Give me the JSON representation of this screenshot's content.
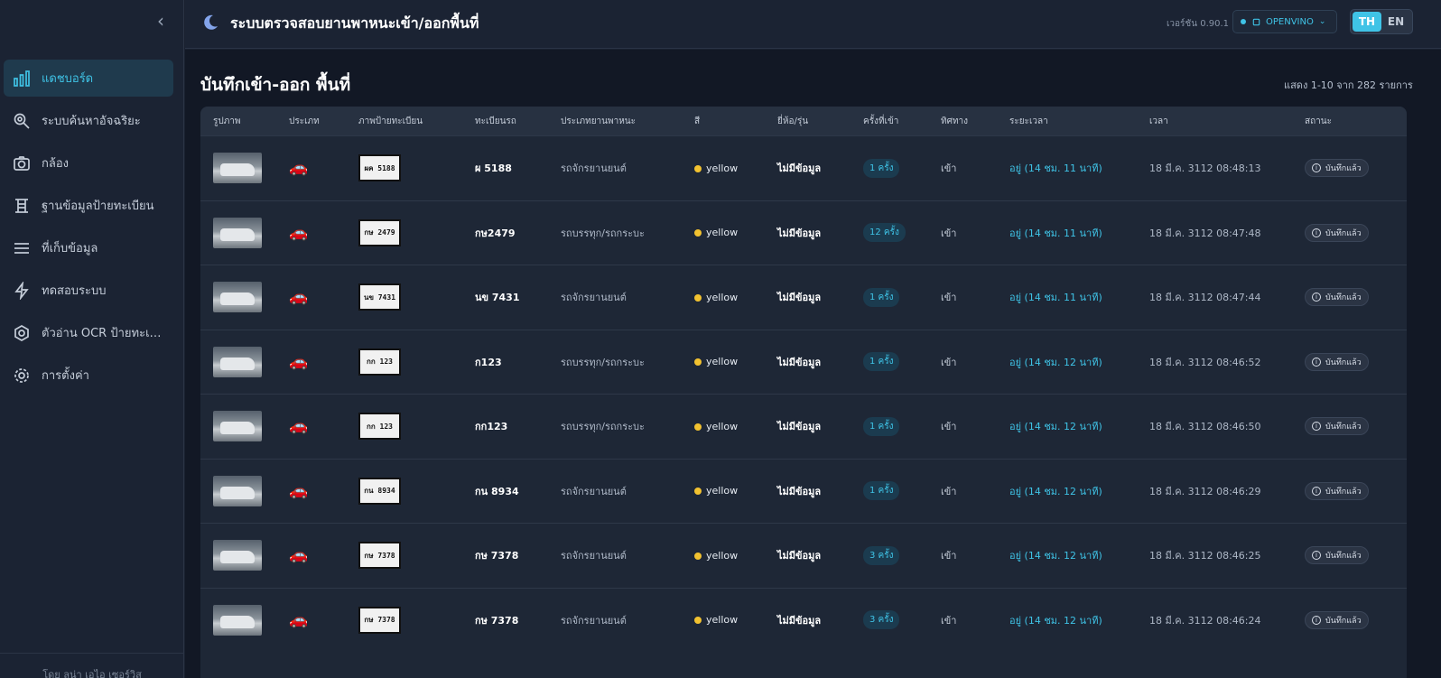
{
  "header": {
    "title": "ระบบตรวจสอบยานพาหนะเข้า/ออกพื้นที่",
    "version": "เวอร์ชัน 0.90.1",
    "engine": "OPENVINO",
    "lang_th": "TH",
    "lang_en": "EN"
  },
  "sidebar": {
    "collapse": "‹",
    "items": [
      {
        "label": "แดชบอร์ด",
        "icon": "bar-chart-icon"
      },
      {
        "label": "ระบบค้นหาอัจฉริยะ",
        "icon": "search-icon"
      },
      {
        "label": "กล้อง",
        "icon": "camera-icon"
      },
      {
        "label": "ฐานข้อมูลป้ายทะเบียน",
        "icon": "database-icon"
      },
      {
        "label": "ที่เก็บข้อมูล",
        "icon": "list-icon"
      },
      {
        "label": "ทดสอบระบบ",
        "icon": "bolt-icon"
      },
      {
        "label": "ตัวอ่าน OCR ป้ายทะเบี...",
        "icon": "ocr-icon"
      },
      {
        "label": "การตั้งค่า",
        "icon": "gear-icon"
      }
    ],
    "footer": "โดย ลูน่า เอไอ เซอร์วิส"
  },
  "main": {
    "title": "บันทึกเข้า-ออก พื้นที่",
    "record_count": "แสดง 1-10 จาก 282 รายการ",
    "columns": [
      "รูปภาพ",
      "ประเภท",
      "ภาพป้ายทะเบียน",
      "ทะเบียนรถ",
      "ประเภทยานพาหนะ",
      "สี",
      "ยี่ห้อ/รุ่น",
      "ครั้งที่เข้า",
      "ทิศทาง",
      "ระยะเวลา",
      "เวลา",
      "สถานะ"
    ],
    "rows": [
      {
        "plate_text": "ผค 5188",
        "reg": "ผ  5188",
        "vtype": "รถจักรยานยนต์",
        "color": "yellow",
        "brand": "ไม่มีข้อมูล",
        "count": "1 ครั้ง",
        "dir": "เข้า",
        "duration": "อยู่ (14 ชม. 11 นาที)",
        "time": "18 มี.ค. 3112 08:48:13",
        "status": "บันทึกแล้ว"
      },
      {
        "plate_text": "กษ 2479",
        "reg": "กษ2479",
        "vtype": "รถบรรทุก/รถกระบะ",
        "color": "yellow",
        "brand": "ไม่มีข้อมูล",
        "count": "12 ครั้ง",
        "dir": "เข้า",
        "duration": "อยู่ (14 ชม. 11 นาที)",
        "time": "18 มี.ค. 3112 08:47:48",
        "status": "บันทึกแล้ว"
      },
      {
        "plate_text": "นข 7431",
        "reg": "นข  7431",
        "vtype": "รถจักรยานยนต์",
        "color": "yellow",
        "brand": "ไม่มีข้อมูล",
        "count": "1 ครั้ง",
        "dir": "เข้า",
        "duration": "อยู่ (14 ชม. 11 นาที)",
        "time": "18 มี.ค. 3112 08:47:44",
        "status": "บันทึกแล้ว"
      },
      {
        "plate_text": "กก 123",
        "reg": "ก123",
        "vtype": "รถบรรทุก/รถกระบะ",
        "color": "yellow",
        "brand": "ไม่มีข้อมูล",
        "count": "1 ครั้ง",
        "dir": "เข้า",
        "duration": "อยู่ (14 ชม. 12 นาที)",
        "time": "18 มี.ค. 3112 08:46:52",
        "status": "บันทึกแล้ว"
      },
      {
        "plate_text": "กก 123",
        "reg": "กก123",
        "vtype": "รถบรรทุก/รถกระบะ",
        "color": "yellow",
        "brand": "ไม่มีข้อมูล",
        "count": "1 ครั้ง",
        "dir": "เข้า",
        "duration": "อยู่ (14 ชม. 12 นาที)",
        "time": "18 มี.ค. 3112 08:46:50",
        "status": "บันทึกแล้ว"
      },
      {
        "plate_text": "กน 8934",
        "reg": "กน  8934",
        "vtype": "รถจักรยานยนต์",
        "color": "yellow",
        "brand": "ไม่มีข้อมูล",
        "count": "1 ครั้ง",
        "dir": "เข้า",
        "duration": "อยู่ (14 ชม. 12 นาที)",
        "time": "18 มี.ค. 3112 08:46:29",
        "status": "บันทึกแล้ว"
      },
      {
        "plate_text": "กษ 7378",
        "reg": "กษ  7378",
        "vtype": "รถจักรยานยนต์",
        "color": "yellow",
        "brand": "ไม่มีข้อมูล",
        "count": "3 ครั้ง",
        "dir": "เข้า",
        "duration": "อยู่ (14 ชม. 12 นาที)",
        "time": "18 มี.ค. 3112 08:46:25",
        "status": "บันทึกแล้ว"
      },
      {
        "plate_text": "กษ 7378",
        "reg": "กษ  7378",
        "vtype": "รถจักรยานยนต์",
        "color": "yellow",
        "brand": "ไม่มีข้อมูล",
        "count": "3 ครั้ง",
        "dir": "เข้า",
        "duration": "อยู่ (14 ชม. 12 นาที)",
        "time": "18 มี.ค. 3112 08:46:24",
        "status": "บันทึกแล้ว"
      }
    ]
  },
  "colors": {
    "accent": "#3fc3e6",
    "color_dot": "#f2c230",
    "active_nav_bg": "#1f3a4d"
  }
}
